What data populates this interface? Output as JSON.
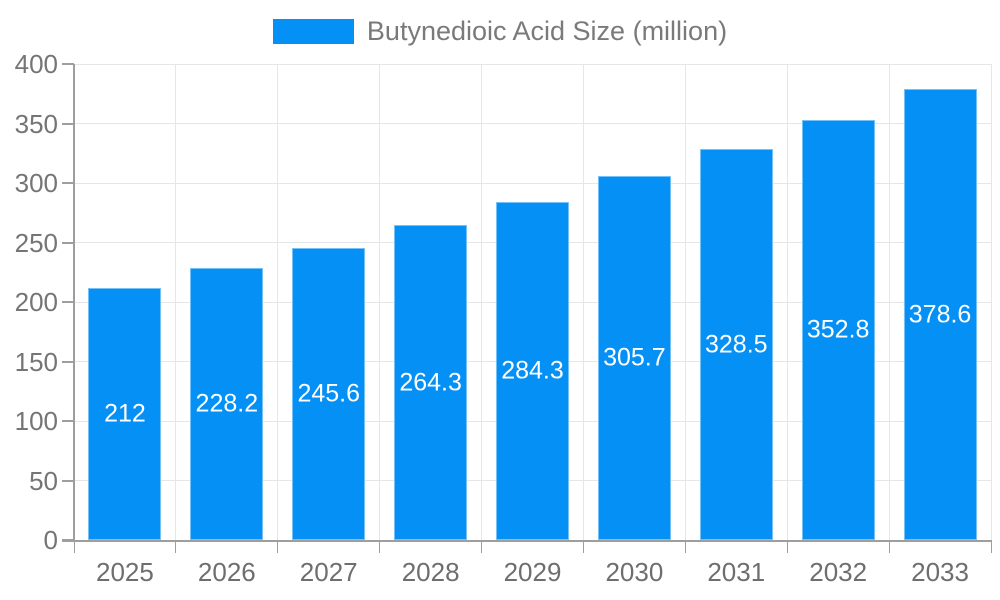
{
  "legend": {
    "series_label": "Butynedioic Acid Size (million)"
  },
  "colors": {
    "bar": "#0590f5",
    "grid": "#e6e6e6",
    "axis": "#9e9e9e",
    "axis_text": "#757575",
    "legend_text": "#7a7a7a",
    "value_text": "#ffffff"
  },
  "chart_data": {
    "type": "bar",
    "title": "",
    "xlabel": "",
    "ylabel": "",
    "categories": [
      "2025",
      "2026",
      "2027",
      "2028",
      "2029",
      "2030",
      "2031",
      "2032",
      "2033"
    ],
    "series": [
      {
        "name": "Butynedioic Acid Size (million)",
        "values": [
          212,
          228.2,
          245.6,
          264.3,
          284.3,
          305.7,
          328.5,
          352.8,
          378.6
        ],
        "color": "#0590f5"
      }
    ],
    "data_labels": [
      "212",
      "228.2",
      "245.6",
      "264.3",
      "284.3",
      "305.7",
      "328.5",
      "352.8",
      "378.6"
    ],
    "data_labels_position": "inside-center",
    "data_labels_color": "#ffffff",
    "ylim": [
      0,
      400
    ],
    "y_ticks": [
      0,
      50,
      100,
      150,
      200,
      250,
      300,
      350,
      400
    ],
    "grid": true,
    "vertical_grid": true,
    "legend_position": "top-center"
  }
}
